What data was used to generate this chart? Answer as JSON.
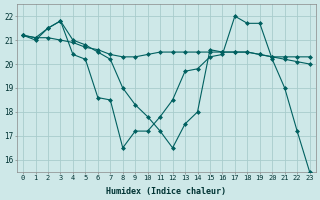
{
  "xlabel": "Humidex (Indice chaleur)",
  "ylabel": "",
  "bg_color": "#cee8e8",
  "grid_color": "#a8cccc",
  "line_color": "#006060",
  "x_values": [
    0,
    1,
    2,
    3,
    4,
    5,
    6,
    7,
    8,
    9,
    10,
    11,
    12,
    13,
    14,
    15,
    16,
    17,
    18,
    19,
    20,
    21,
    22,
    23
  ],
  "line1": [
    21.2,
    21.1,
    21.5,
    21.8,
    20.4,
    20.2,
    18.6,
    18.5,
    16.5,
    17.2,
    17.2,
    17.8,
    18.5,
    19.7,
    19.8,
    20.3,
    20.4,
    22.0,
    21.7,
    21.7,
    20.2,
    19.0,
    17.2,
    15.5
  ],
  "line2": [
    21.2,
    21.1,
    21.1,
    21.0,
    20.9,
    20.7,
    20.6,
    20.4,
    20.3,
    20.3,
    20.4,
    20.5,
    20.5,
    20.5,
    20.5,
    20.5,
    20.5,
    20.5,
    20.5,
    20.4,
    20.3,
    20.3,
    20.3,
    20.3
  ],
  "line3": [
    21.2,
    21.0,
    21.5,
    21.8,
    21.0,
    20.8,
    20.5,
    20.2,
    19.0,
    18.3,
    17.8,
    17.2,
    16.5,
    17.5,
    18.0,
    20.6,
    20.5,
    20.5,
    20.5,
    20.4,
    20.3,
    20.2,
    20.1,
    20.0
  ],
  "ylim": [
    15.5,
    22.5
  ],
  "xlim": [
    -0.5,
    23.5
  ],
  "yticks": [
    16,
    17,
    18,
    19,
    20,
    21,
    22
  ],
  "xticks": [
    0,
    1,
    2,
    3,
    4,
    5,
    6,
    7,
    8,
    9,
    10,
    11,
    12,
    13,
    14,
    15,
    16,
    17,
    18,
    19,
    20,
    21,
    22,
    23
  ],
  "figsize": [
    3.2,
    2.0
  ],
  "dpi": 100
}
